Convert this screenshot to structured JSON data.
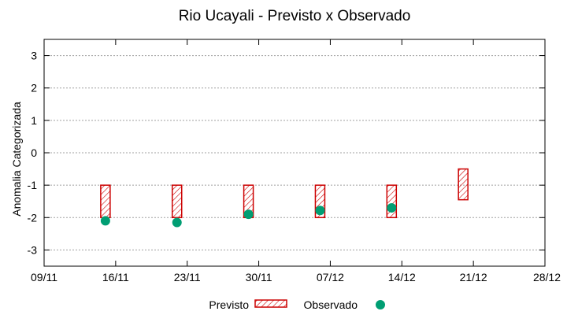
{
  "chart_data": {
    "type": "range-bar-with-points",
    "title": "Rio Ucayali - Previsto x Observado",
    "xlabel": "",
    "ylabel": "Anomalia Categorizada",
    "ylim": [
      -3.5,
      3.5
    ],
    "yticks": [
      3,
      2,
      1,
      0,
      -1,
      -2,
      -3
    ],
    "xlim_days": [
      0,
      49
    ],
    "xticks": [
      {
        "day": 0,
        "label": "09/11"
      },
      {
        "day": 7,
        "label": "16/11"
      },
      {
        "day": 14,
        "label": "23/11"
      },
      {
        "day": 21,
        "label": "30/11"
      },
      {
        "day": 28,
        "label": "07/12"
      },
      {
        "day": 35,
        "label": "14/12"
      },
      {
        "day": 42,
        "label": "21/12"
      },
      {
        "day": 49,
        "label": "28/12"
      }
    ],
    "grid": true,
    "series": [
      {
        "name": "Previsto",
        "kind": "range",
        "color": "#cc0000",
        "points": [
          {
            "day": 6,
            "low": -2.0,
            "high": -1.0
          },
          {
            "day": 13,
            "low": -2.0,
            "high": -1.0
          },
          {
            "day": 20,
            "low": -2.0,
            "high": -1.0
          },
          {
            "day": 27,
            "low": -2.0,
            "high": -1.0
          },
          {
            "day": 34,
            "low": -2.0,
            "high": -1.0
          },
          {
            "day": 41,
            "low": -1.45,
            "high": -0.5
          }
        ]
      },
      {
        "name": "Observado",
        "kind": "point",
        "color": "#009e73",
        "points": [
          {
            "day": 6,
            "value": -2.1
          },
          {
            "day": 13,
            "value": -2.15
          },
          {
            "day": 20,
            "value": -1.9
          },
          {
            "day": 27,
            "value": -1.78
          },
          {
            "day": 34,
            "value": -1.7
          }
        ]
      }
    ],
    "legend": {
      "position": "bottom-center",
      "entries": [
        "Previsto",
        "Observado"
      ]
    }
  }
}
